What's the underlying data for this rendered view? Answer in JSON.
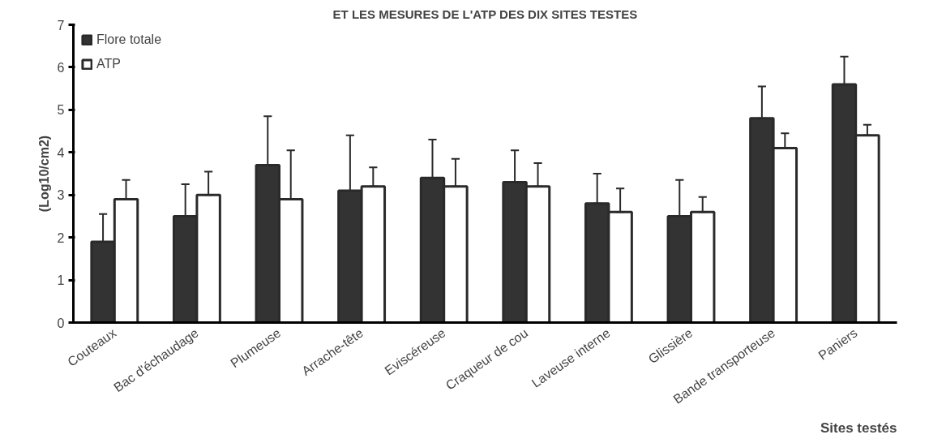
{
  "chart_data": {
    "type": "bar",
    "title": "ET LES MESURES DE L'ATP DES DIX SITES TESTES",
    "xlabel": "Sites testés",
    "ylabel": "(Log10/cm2)",
    "categories": [
      "Couteaux",
      "Bac d'échaudage",
      "Plumeuse",
      "Arrache-tête",
      "Eviscéreuse",
      "Craqueur de cou",
      "Laveuse interne",
      "Glissière",
      "Bande transporteuse",
      "Paniers"
    ],
    "series": [
      {
        "name": "Flore totale",
        "color": "#333333",
        "values": [
          1.9,
          2.5,
          3.7,
          3.1,
          3.4,
          3.3,
          2.8,
          2.5,
          4.8,
          5.6
        ],
        "errors": [
          [
            1.9,
            2.55
          ],
          [
            2.5,
            3.25
          ],
          [
            3.7,
            4.85
          ],
          [
            3.1,
            4.4
          ],
          [
            3.4,
            4.3
          ],
          [
            3.3,
            4.05
          ],
          [
            2.8,
            3.5
          ],
          [
            2.5,
            3.35
          ],
          [
            4.8,
            5.55
          ],
          [
            5.6,
            6.25
          ]
        ]
      },
      {
        "name": "ATP",
        "color": "#ffffff",
        "values": [
          2.9,
          3.0,
          2.9,
          3.2,
          3.2,
          3.2,
          2.6,
          2.6,
          4.1,
          4.4
        ],
        "errors": [
          [
            2.9,
            3.35
          ],
          [
            3.0,
            3.55
          ],
          [
            2.9,
            4.05
          ],
          [
            3.2,
            3.65
          ],
          [
            3.2,
            3.85
          ],
          [
            3.2,
            3.75
          ],
          [
            2.6,
            3.15
          ],
          [
            2.6,
            2.95
          ],
          [
            4.1,
            4.45
          ],
          [
            4.4,
            4.65
          ]
        ]
      }
    ],
    "ylim": [
      0,
      7
    ],
    "yticks": [
      0,
      1,
      2,
      3,
      4,
      5,
      6,
      7
    ],
    "grid": false,
    "legend": "top left"
  }
}
